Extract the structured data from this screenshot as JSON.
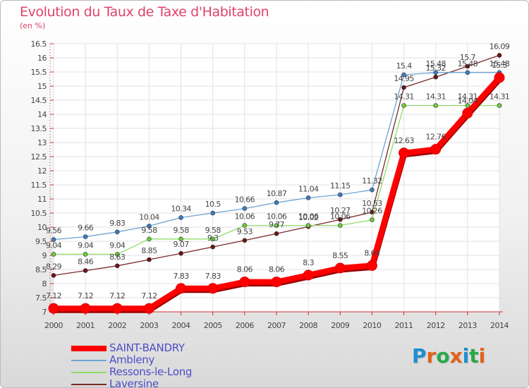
{
  "header": {
    "title": "Evolution du Taux de Taxe d'Habitation",
    "unit": "(en %)"
  },
  "logo": {
    "text": "Proxiti",
    "letter_colors": [
      "#1e8fd0",
      "#e2621b",
      "#2aa84a",
      "#e2621b",
      "#1e8fd0",
      "#2aa84a",
      "#e2621b"
    ]
  },
  "chart_data": {
    "type": "line",
    "title": "Evolution du Taux de Taxe d'Habitation",
    "ylabel": "(en %)",
    "xlabel": "",
    "ylim": [
      7,
      16.5
    ],
    "yticks": [
      7,
      7.5,
      8,
      8.5,
      9,
      9.5,
      10,
      10.5,
      11,
      11.5,
      12,
      12.5,
      13,
      13.5,
      14,
      14.5,
      15,
      15.5,
      16,
      16.5
    ],
    "grid": true,
    "legend_position": "bottom-left",
    "x": [
      2000,
      2001,
      2002,
      2003,
      2004,
      2005,
      2006,
      2007,
      2008,
      2009,
      2010,
      2011,
      2012,
      2013,
      2014
    ],
    "series": [
      {
        "name": "SAINT-BANDRY",
        "color": "#ff0000",
        "values": [
          7.12,
          7.12,
          7.12,
          7.12,
          7.83,
          7.83,
          8.06,
          8.06,
          8.3,
          8.55,
          8.64,
          12.63,
          12.76,
          14.04,
          15.3
        ],
        "labels": [
          "7.12",
          "7.12",
          "7.12",
          "7.12",
          "7.83",
          "7.83",
          "8.06",
          "8.06",
          "8.3",
          "8.55",
          "8.64",
          "12.63",
          "12.76",
          "14.04",
          "15.3"
        ]
      },
      {
        "name": "Ambleny",
        "color": "#6da3d3",
        "values": [
          9.56,
          9.66,
          9.83,
          10.04,
          10.34,
          10.5,
          10.66,
          10.87,
          11.04,
          11.15,
          11.32,
          15.4,
          15.48,
          15.48,
          15.48
        ],
        "labels": [
          "9.56",
          "9.66",
          "9.83",
          "10.04",
          "10.34",
          "10.5",
          "10.66",
          "10.87",
          "11.04",
          "11.15",
          "11.32",
          "15.4",
          "15.48",
          "15.48",
          "15.48"
        ]
      },
      {
        "name": "Ressons-le-Long",
        "color": "#8fdc68",
        "values": [
          9.04,
          9.04,
          9.04,
          9.58,
          9.58,
          9.58,
          10.06,
          10.06,
          10.06,
          10.06,
          10.26,
          14.31,
          14.31,
          14.31,
          14.31
        ],
        "labels": [
          "9.04",
          "9.04",
          "9.04",
          "9.58",
          "9.58",
          "9.58",
          "10.06",
          "10.06",
          "10.06",
          "10.06",
          "10.26",
          "14.31",
          "14.31",
          "14.31",
          "14.31"
        ]
      },
      {
        "name": "Laversine",
        "color": "#7a2a2a",
        "values": [
          8.29,
          8.46,
          8.63,
          8.85,
          9.07,
          9.3,
          9.53,
          9.77,
          10.02,
          10.27,
          10.53,
          14.95,
          15.32,
          15.7,
          16.09
        ],
        "labels": [
          "8.29",
          "8.46",
          "8.63",
          "8.85",
          "9.07",
          "9.3",
          "9.53",
          "9.77",
          "10.02",
          "10.27",
          "10.53",
          "14.95",
          "15.32",
          "15.7",
          "16.09"
        ]
      }
    ]
  }
}
